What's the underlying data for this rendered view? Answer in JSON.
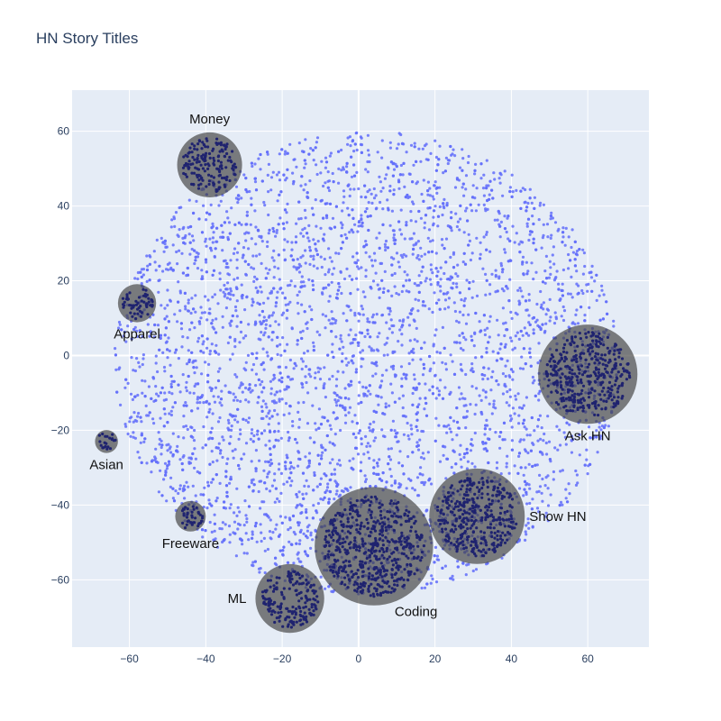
{
  "colors": {
    "plot_bg": "#e5ecf6",
    "grid": "#ffffff",
    "point": "#636efa",
    "cluster_fill": "#444444",
    "cluster_point": "#1f236f"
  },
  "chart_data": {
    "type": "scatter",
    "title": "HN Story Titles",
    "xlabel": "",
    "ylabel": "",
    "xlim": [
      -75,
      76
    ],
    "ylim": [
      -78,
      71
    ],
    "xticks": [
      -60,
      -40,
      -20,
      0,
      20,
      40,
      60
    ],
    "yticks": [
      -60,
      -40,
      -20,
      0,
      20,
      40,
      60
    ],
    "xtick_labels": [
      "−60",
      "−40",
      "−20",
      "0",
      "20",
      "40",
      "60"
    ],
    "ytick_labels": [
      "−60",
      "−40",
      "−20",
      "0",
      "20",
      "40",
      "60"
    ],
    "grid": true,
    "legend": "none",
    "point_count_approx": 4500,
    "clusters": [
      {
        "label": "Money",
        "cx": -39,
        "cy": 51,
        "r": 8.5,
        "label_pos": "top"
      },
      {
        "label": "Apparel",
        "cx": -58,
        "cy": 14,
        "r": 5,
        "label_pos": "bottom"
      },
      {
        "label": "Asian",
        "cx": -66,
        "cy": -23,
        "r": 3,
        "label_pos": "bottom"
      },
      {
        "label": "Freeware",
        "cx": -44,
        "cy": -43,
        "r": 4,
        "label_pos": "bottom"
      },
      {
        "label": "ML",
        "cx": -18,
        "cy": -65,
        "r": 9,
        "label_pos": "left"
      },
      {
        "label": "Coding",
        "cx": 4,
        "cy": -51,
        "r": 15.5,
        "label_pos": "bottom-right"
      },
      {
        "label": "Show HN",
        "cx": 31,
        "cy": -43,
        "r": 12.5,
        "label_pos": "right"
      },
      {
        "label": "Ask HN",
        "cx": 60,
        "cy": -5,
        "r": 13,
        "label_pos": "bottom"
      }
    ]
  }
}
